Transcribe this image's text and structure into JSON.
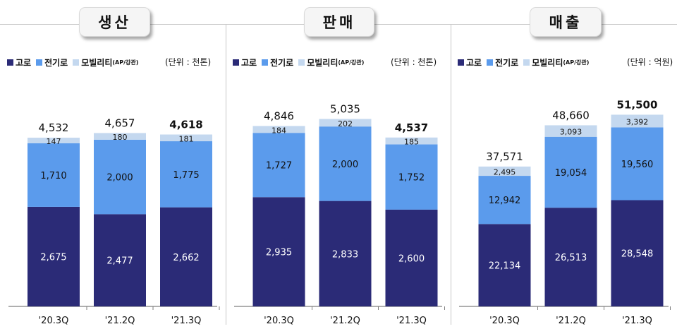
{
  "legend": {
    "blast": "고로",
    "electric": "전기로",
    "mobility_main": "모빌리티",
    "mobility_sub": "(AP/강관)"
  },
  "colors": {
    "blast": "#2b2b77",
    "electric": "#5b9bec",
    "mobility": "#c4d8ef"
  },
  "chart_data": [
    {
      "type": "bar",
      "stacked": true,
      "title": "생산",
      "unit": "(단위 : 천톤)",
      "categories": [
        "'20.3Q",
        "'21.2Q",
        "'21.3Q"
      ],
      "series": [
        {
          "name": "고로",
          "values": [
            2675,
            2477,
            2662
          ],
          "labels": [
            "2,675",
            "2,477",
            "2,662"
          ]
        },
        {
          "name": "전기로",
          "values": [
            1710,
            2000,
            1775
          ],
          "labels": [
            "1,710",
            "2,000",
            "1,775"
          ]
        },
        {
          "name": "모빌리티(AP/강관)",
          "values": [
            147,
            180,
            181
          ],
          "labels": [
            "147",
            "180",
            "181"
          ]
        }
      ],
      "totals": [
        "4,532",
        "4,657",
        "4,618"
      ],
      "ylim": [
        0,
        5500
      ]
    },
    {
      "type": "bar",
      "stacked": true,
      "title": "판매",
      "unit": "(단위 : 천톤)",
      "categories": [
        "'20.3Q",
        "'21.2Q",
        "'21.3Q"
      ],
      "series": [
        {
          "name": "고로",
          "values": [
            2935,
            2833,
            2600
          ],
          "labels": [
            "2,935",
            "2,833",
            "2,600"
          ]
        },
        {
          "name": "전기로",
          "values": [
            1727,
            2000,
            1752
          ],
          "labels": [
            "1,727",
            "2,000",
            "1,752"
          ]
        },
        {
          "name": "모빌리티(AP/강관)",
          "values": [
            184,
            202,
            185
          ],
          "labels": [
            "184",
            "202",
            "185"
          ]
        }
      ],
      "totals": [
        "4,846",
        "5,035",
        "4,537"
      ],
      "ylim": [
        0,
        5500
      ]
    },
    {
      "type": "bar",
      "stacked": true,
      "title": "매출",
      "unit": "(단위 : 억원)",
      "categories": [
        "'20.3Q",
        "'21.2Q",
        "'21.3Q"
      ],
      "series": [
        {
          "name": "고로",
          "values": [
            22134,
            26513,
            28548
          ],
          "labels": [
            "22,134",
            "26,513",
            "28,548"
          ]
        },
        {
          "name": "전기로",
          "values": [
            12942,
            19054,
            19560
          ],
          "labels": [
            "12,942",
            "19,054",
            "19,560"
          ]
        },
        {
          "name": "모빌리티(AP/강관)",
          "values": [
            2495,
            3093,
            3392
          ],
          "labels": [
            "2,495",
            "3,093",
            "3,392"
          ]
        }
      ],
      "totals": [
        "37,571",
        "48,660",
        "51,500"
      ],
      "ylim": [
        0,
        55000
      ]
    }
  ]
}
